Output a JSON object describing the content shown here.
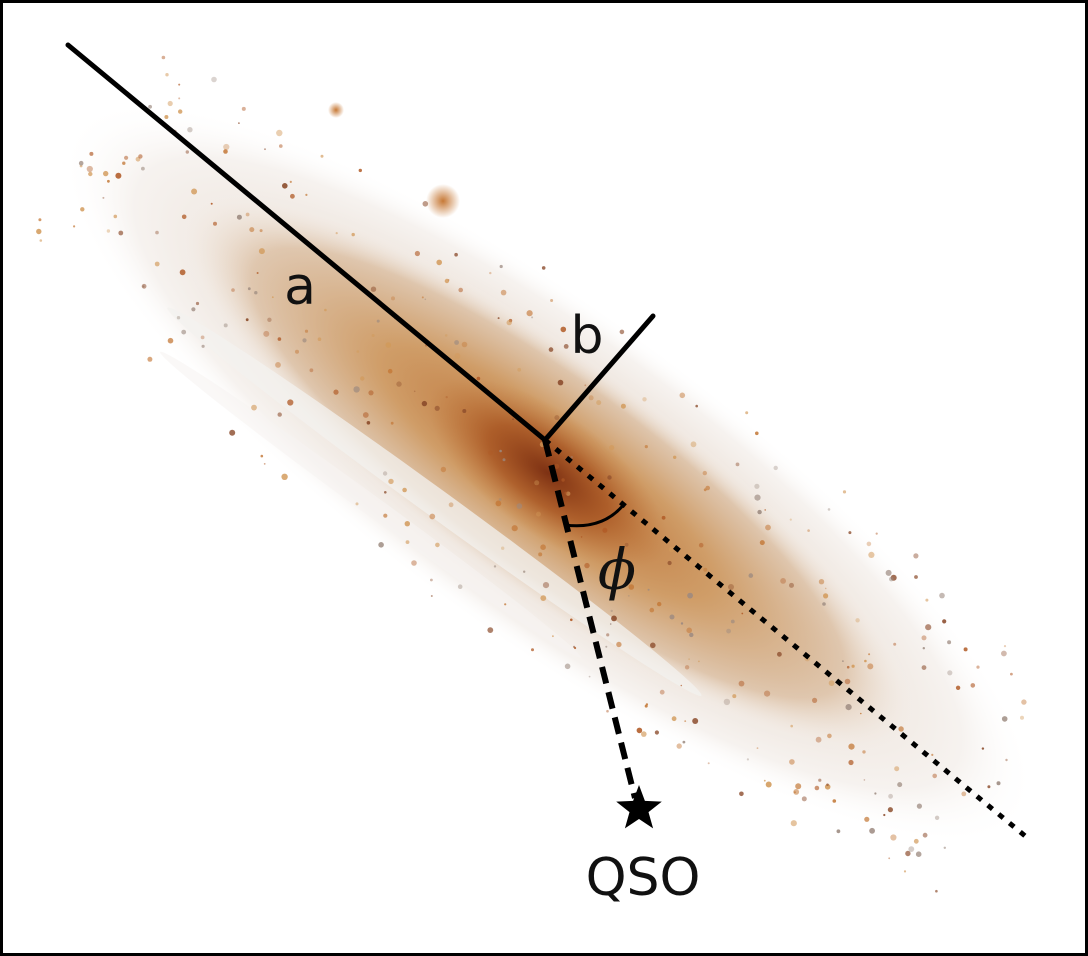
{
  "diagram": {
    "labels": {
      "semi_major_axis": "a",
      "semi_minor_axis": "b",
      "azimuthal_angle": "ϕ",
      "quasar": "QSO"
    },
    "colors": {
      "frame": "#000000",
      "lines": "#000000",
      "galaxy_core": "#9a4a1c",
      "galaxy_mid": "#c98a4a",
      "galaxy_outer": "#d8c2a8",
      "dust_lane": "#f2f0ee",
      "stars": "#b05a26"
    },
    "icons": {
      "quasar_marker": "star-icon"
    }
  }
}
